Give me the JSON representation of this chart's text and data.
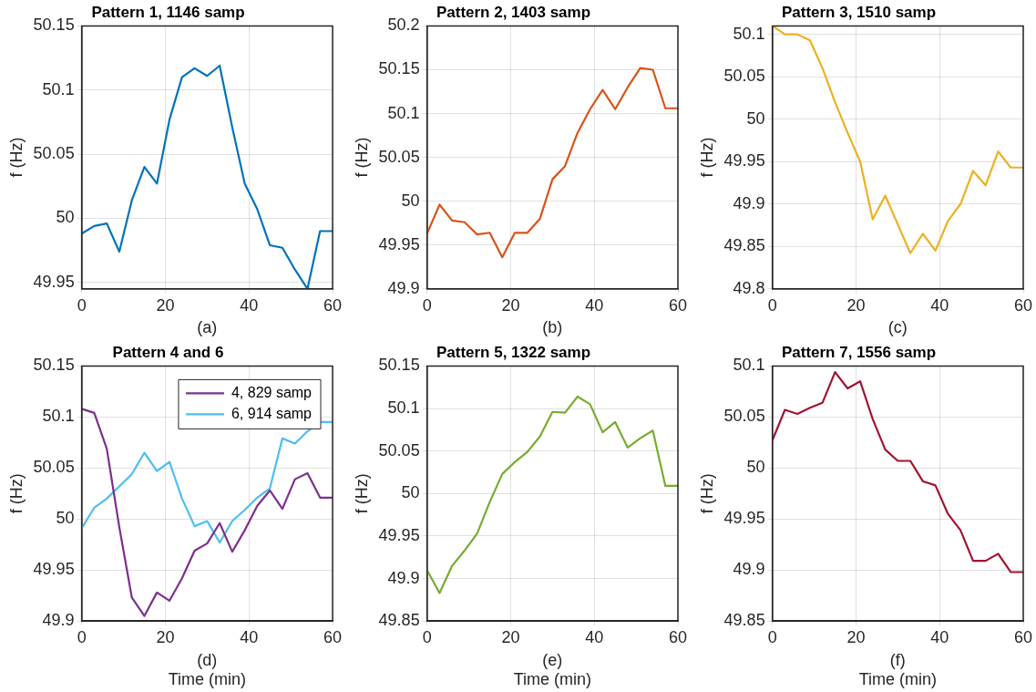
{
  "chart_data": [
    {
      "type": "line",
      "title": "Pattern 1, 1146 samp",
      "ylabel": "f (Hz)",
      "annotations": [
        "(a)"
      ],
      "x": [
        0,
        3,
        6,
        9,
        12,
        15,
        18,
        21,
        24,
        27,
        30,
        33,
        36,
        39,
        42,
        45,
        48,
        51,
        54,
        57,
        60
      ],
      "xlim": [
        0,
        60
      ],
      "xticks": [
        0,
        20,
        40,
        60
      ],
      "ylim": [
        49.945,
        50.15
      ],
      "yticks": [
        49.95,
        50,
        50.05,
        50.1,
        50.15
      ],
      "grid": true,
      "legend": false,
      "series": [
        {
          "color": "#0072bd",
          "values": [
            49.988,
            49.994,
            49.996,
            49.974,
            50.014,
            50.04,
            50.027,
            50.077,
            50.11,
            50.117,
            50.111,
            50.119,
            50.071,
            50.027,
            50.007,
            49.979,
            49.977,
            49.96,
            49.945,
            49.99,
            49.99
          ]
        }
      ]
    },
    {
      "type": "line",
      "title": "Pattern 2, 1403 samp",
      "ylabel": "f (Hz)",
      "annotations": [
        "(b)"
      ],
      "x": [
        0,
        3,
        6,
        9,
        12,
        15,
        18,
        21,
        24,
        27,
        30,
        33,
        36,
        39,
        42,
        45,
        48,
        51,
        54,
        57,
        60
      ],
      "xlim": [
        0,
        60
      ],
      "xticks": [
        0,
        20,
        40,
        60
      ],
      "ylim": [
        49.9,
        50.2
      ],
      "yticks": [
        49.9,
        49.95,
        50,
        50.05,
        50.1,
        50.15,
        50.2
      ],
      "grid": true,
      "legend": false,
      "series": [
        {
          "color": "#d95319",
          "values": [
            49.963,
            49.996,
            49.978,
            49.976,
            49.962,
            49.964,
            49.936,
            49.964,
            49.964,
            49.98,
            50.025,
            50.04,
            50.078,
            50.105,
            50.127,
            50.105,
            50.13,
            50.152,
            50.15,
            50.106,
            50.106
          ]
        }
      ]
    },
    {
      "type": "line",
      "title": "Pattern 3, 1510 samp",
      "ylabel": "f (Hz)",
      "annotations": [
        "(c)"
      ],
      "x": [
        0,
        3,
        6,
        9,
        12,
        15,
        18,
        21,
        24,
        27,
        30,
        33,
        36,
        39,
        42,
        45,
        48,
        51,
        54,
        57,
        60
      ],
      "xlim": [
        0,
        60
      ],
      "xticks": [
        0,
        20,
        40,
        60
      ],
      "ylim": [
        49.8,
        50.11
      ],
      "yticks": [
        49.8,
        49.85,
        49.9,
        49.95,
        50,
        50.05,
        50.1
      ],
      "grid": true,
      "legend": false,
      "series": [
        {
          "color": "#edb120",
          "values": [
            50.11,
            50.1,
            50.1,
            50.093,
            50.06,
            50.02,
            49.984,
            49.95,
            49.882,
            49.91,
            49.876,
            49.842,
            49.865,
            49.845,
            49.88,
            49.9,
            49.939,
            49.922,
            49.962,
            49.943,
            49.943
          ]
        }
      ]
    },
    {
      "type": "line",
      "title": "Pattern 4 and 6",
      "ylabel": "f (Hz)",
      "xlabel": "Time (min)",
      "annotations": [
        "(d)"
      ],
      "x": [
        0,
        3,
        6,
        9,
        12,
        15,
        18,
        21,
        24,
        27,
        30,
        33,
        36,
        39,
        42,
        45,
        48,
        51,
        54,
        57,
        60
      ],
      "xlim": [
        0,
        60
      ],
      "xticks": [
        0,
        20,
        40,
        60
      ],
      "ylim": [
        49.9,
        50.15
      ],
      "yticks": [
        49.9,
        49.95,
        50,
        50.05,
        50.1,
        50.15
      ],
      "grid": true,
      "legend": "top right",
      "series": [
        {
          "name": "4, 829 samp",
          "color": "#7e2f8e",
          "values": [
            50.108,
            50.104,
            50.069,
            49.992,
            49.923,
            49.905,
            49.928,
            49.92,
            49.942,
            49.969,
            49.976,
            49.996,
            49.968,
            49.989,
            50.013,
            50.028,
            50.01,
            50.039,
            50.045,
            50.021,
            50.021
          ]
        },
        {
          "name": "6, 914 samp",
          "color": "#4dbeee",
          "values": [
            49.991,
            50.011,
            50.02,
            50.032,
            50.044,
            50.065,
            50.047,
            50.056,
            50.02,
            49.993,
            49.998,
            49.977,
            49.998,
            50.009,
            50.021,
            50.03,
            50.079,
            50.074,
            50.086,
            50.095,
            50.095
          ]
        }
      ]
    },
    {
      "type": "line",
      "title": "Pattern 5, 1322 samp",
      "ylabel": "f (Hz)",
      "xlabel": "Time (min)",
      "annotations": [
        "(e)"
      ],
      "x": [
        0,
        3,
        6,
        9,
        12,
        15,
        18,
        21,
        24,
        27,
        30,
        33,
        36,
        39,
        42,
        45,
        48,
        51,
        54,
        57,
        60
      ],
      "xlim": [
        0,
        60
      ],
      "xticks": [
        0,
        20,
        40,
        60
      ],
      "ylim": [
        49.85,
        50.15
      ],
      "yticks": [
        49.85,
        49.9,
        49.95,
        50,
        50.05,
        50.1,
        50.15
      ],
      "grid": true,
      "legend": false,
      "series": [
        {
          "color": "#77ac30",
          "values": [
            49.91,
            49.883,
            49.915,
            49.933,
            49.953,
            49.99,
            50.023,
            50.037,
            50.049,
            50.067,
            50.096,
            50.095,
            50.114,
            50.105,
            50.072,
            50.084,
            50.054,
            50.065,
            50.074,
            50.009,
            50.009
          ]
        }
      ]
    },
    {
      "type": "line",
      "title": "Pattern 7, 1556 samp",
      "ylabel": "f (Hz)",
      "xlabel": "Time (min)",
      "annotations": [
        "(f)"
      ],
      "x": [
        0,
        3,
        6,
        9,
        12,
        15,
        18,
        21,
        24,
        27,
        30,
        33,
        36,
        39,
        42,
        45,
        48,
        51,
        54,
        57,
        60
      ],
      "xlim": [
        0,
        60
      ],
      "xticks": [
        0,
        20,
        40,
        60
      ],
      "ylim": [
        49.85,
        50.1
      ],
      "yticks": [
        49.85,
        49.9,
        49.95,
        50,
        50.05,
        50.1
      ],
      "grid": true,
      "legend": false,
      "series": [
        {
          "color": "#a2142f",
          "values": [
            50.027,
            50.057,
            50.053,
            50.059,
            50.064,
            50.094,
            50.078,
            50.085,
            50.048,
            50.018,
            50.007,
            50.007,
            49.987,
            49.983,
            49.955,
            49.939,
            49.909,
            49.909,
            49.916,
            49.898,
            49.898
          ]
        }
      ]
    }
  ]
}
